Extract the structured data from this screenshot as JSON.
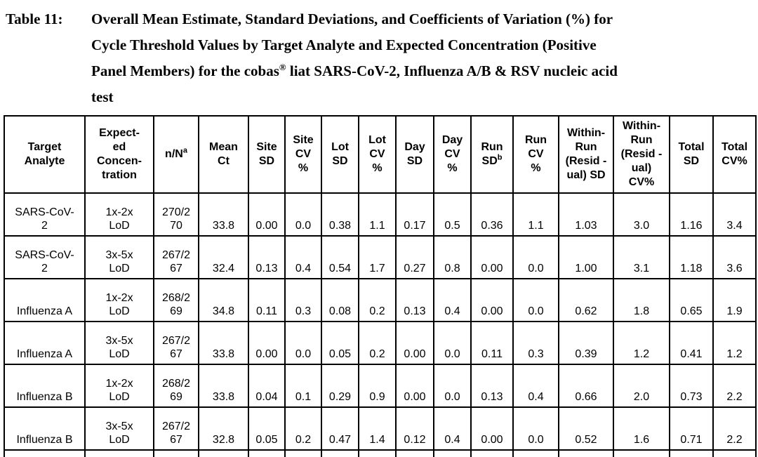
{
  "caption": {
    "label": "Table 11:",
    "line1": "Overall Mean Estimate, Standard Deviations, and Coefficients of Variation (%) for",
    "line2": "Cycle Threshold Values by Target Analyte and Expected Concentration (Positive",
    "line3_pre": "Panel Members) for the cobas",
    "line3_sup": "®",
    "line3_post": " liat SARS-CoV-2, Influenza A/B & RSV nucleic acid",
    "line4": "test"
  },
  "table": {
    "columns": [
      {
        "label": "Target\nAnalyte"
      },
      {
        "label": "Expect-\ned\nConcen-\ntration"
      },
      {
        "label": "n/N",
        "sup": "a"
      },
      {
        "label": "Mean\nCt"
      },
      {
        "label": "Site\nSD"
      },
      {
        "label": "Site\nCV\n%"
      },
      {
        "label": "Lot\nSD"
      },
      {
        "label": "Lot\nCV\n%"
      },
      {
        "label": "Day\nSD"
      },
      {
        "label": "Day\nCV\n%"
      },
      {
        "label": "Run\nSD",
        "sup": "b"
      },
      {
        "label": "Run\nCV\n%"
      },
      {
        "label": "Within-\nRun\n(Resid -\nual) SD"
      },
      {
        "label": "Within-\nRun\n(Resid -\nual)\nCV%"
      },
      {
        "label": "Total\nSD"
      },
      {
        "label": "Total\nCV%"
      }
    ],
    "rows": [
      [
        "SARS-CoV-\n2",
        "1x-2x\nLoD",
        "270/2\n70",
        "33.8",
        "0.00",
        "0.0",
        "0.38",
        "1.1",
        "0.17",
        "0.5",
        "0.36",
        "1.1",
        "1.03",
        "3.0",
        "1.16",
        "3.4"
      ],
      [
        "SARS-CoV-\n2",
        "3x-5x\nLoD",
        "267/2\n67",
        "32.4",
        "0.13",
        "0.4",
        "0.54",
        "1.7",
        "0.27",
        "0.8",
        "0.00",
        "0.0",
        "1.00",
        "3.1",
        "1.18",
        "3.6"
      ],
      [
        "Influenza A",
        "1x-2x\nLoD",
        "268/2\n69",
        "34.8",
        "0.11",
        "0.3",
        "0.08",
        "0.2",
        "0.13",
        "0.4",
        "0.00",
        "0.0",
        "0.62",
        "1.8",
        "0.65",
        "1.9"
      ],
      [
        "Influenza A",
        "3x-5x\nLoD",
        "267/2\n67",
        "33.8",
        "0.00",
        "0.0",
        "0.05",
        "0.2",
        "0.00",
        "0.0",
        "0.11",
        "0.3",
        "0.39",
        "1.2",
        "0.41",
        "1.2"
      ],
      [
        "Influenza B",
        "1x-2x\nLoD",
        "268/2\n69",
        "33.8",
        "0.04",
        "0.1",
        "0.29",
        "0.9",
        "0.00",
        "0.0",
        "0.13",
        "0.4",
        "0.66",
        "2.0",
        "0.73",
        "2.2"
      ],
      [
        "Influenza B",
        "3x-5x\nLoD",
        "267/2\n67",
        "32.8",
        "0.05",
        "0.2",
        "0.47",
        "1.4",
        "0.12",
        "0.4",
        "0.00",
        "0.0",
        "0.52",
        "1.6",
        "0.71",
        "2.2"
      ]
    ],
    "text_color": "#000000",
    "border_color": "#000000",
    "background_color": "#ffffff"
  }
}
